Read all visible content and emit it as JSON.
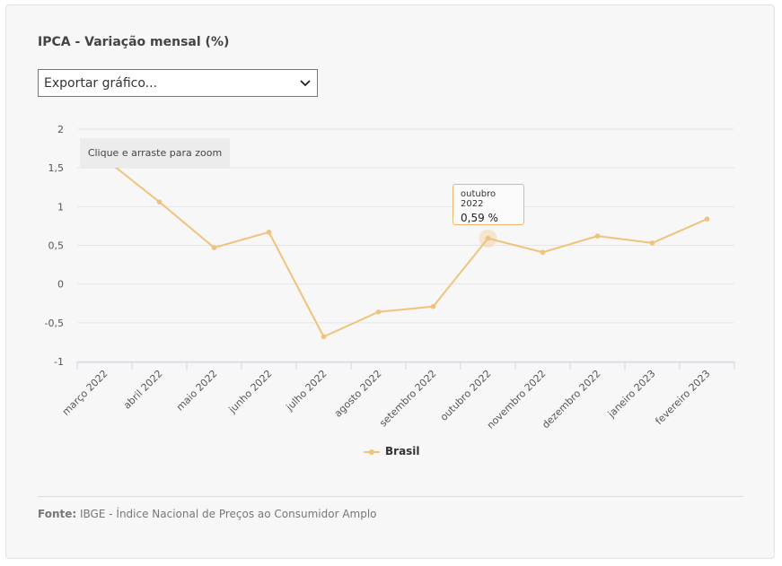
{
  "title": "IPCA - Variação mensal (%)",
  "export_select": {
    "value": "Exportar gráfico..."
  },
  "zoom_hint": "Clique e arraste para zoom",
  "tooltip": {
    "label": "outubro 2022",
    "value": "0,59 %"
  },
  "source": {
    "label": "Fonte:",
    "text": "IBGE - Índice Nacional de Preços ao Consumidor Amplo"
  },
  "colors": {
    "series": "#f0c27b",
    "grid": "#e6e6e6",
    "axis": "#ccd6eb",
    "background": "#f7f7f7"
  },
  "chart_data": {
    "type": "line",
    "title": "IPCA - Variação mensal (%)",
    "categories": [
      "março 2022",
      "abril 2022",
      "maio 2022",
      "junho 2022",
      "julho 2022",
      "agosto 2022",
      "setembro 2022",
      "outubro 2022",
      "novembro 2022",
      "dezembro 2022",
      "janeiro 2023",
      "fevereiro 2023"
    ],
    "series": [
      {
        "name": "Brasil",
        "values": [
          1.62,
          1.06,
          0.47,
          0.67,
          -0.68,
          -0.36,
          -0.29,
          0.59,
          0.41,
          0.62,
          0.53,
          0.84
        ]
      }
    ],
    "ylim": [
      -1,
      2
    ],
    "yticks": [
      "2",
      "1,5",
      "1",
      "0,5",
      "0",
      "-0,5",
      "-1"
    ],
    "grid": true,
    "legend": "bottom-center",
    "highlighted_category": "outubro 2022"
  }
}
